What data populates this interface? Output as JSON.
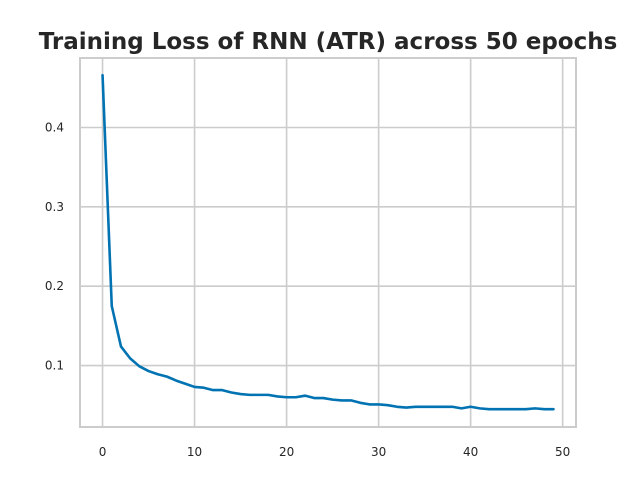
{
  "chart_data": {
    "type": "line",
    "title": "Training Loss of RNN (ATR) across 50 epochs",
    "xlabel": "",
    "ylabel": "",
    "xlim": [
      -2.45,
      51.45
    ],
    "ylim": [
      0.0225,
      0.4876
    ],
    "xticks": [
      0,
      10,
      20,
      30,
      40,
      50
    ],
    "yticks": [
      0.1,
      0.2,
      0.3,
      0.4
    ],
    "xtick_labels": [
      "0",
      "10",
      "20",
      "30",
      "40",
      "50"
    ],
    "ytick_labels": [
      "0.1",
      "0.2",
      "0.3",
      "0.4"
    ],
    "grid": true,
    "legend": "none",
    "series": [
      {
        "color": "#0173b2",
        "x": [
          0,
          1,
          2,
          3,
          4,
          5,
          6,
          7,
          8,
          9,
          10,
          11,
          12,
          13,
          14,
          15,
          16,
          17,
          18,
          19,
          20,
          21,
          22,
          23,
          24,
          25,
          26,
          27,
          28,
          29,
          30,
          31,
          32,
          33,
          34,
          35,
          36,
          37,
          38,
          39,
          40,
          41,
          42,
          43,
          44,
          45,
          46,
          47,
          48,
          49
        ],
        "y": [
          0.466,
          0.175,
          0.124,
          0.109,
          0.099,
          0.093,
          0.089,
          0.086,
          0.081,
          0.077,
          0.073,
          0.072,
          0.069,
          0.069,
          0.066,
          0.064,
          0.063,
          0.063,
          0.063,
          0.061,
          0.06,
          0.06,
          0.062,
          0.059,
          0.059,
          0.057,
          0.056,
          0.056,
          0.053,
          0.051,
          0.051,
          0.05,
          0.048,
          0.047,
          0.048,
          0.048,
          0.048,
          0.048,
          0.048,
          0.046,
          0.048,
          0.046,
          0.045,
          0.045,
          0.045,
          0.045,
          0.045,
          0.046,
          0.045,
          0.045
        ]
      }
    ]
  }
}
